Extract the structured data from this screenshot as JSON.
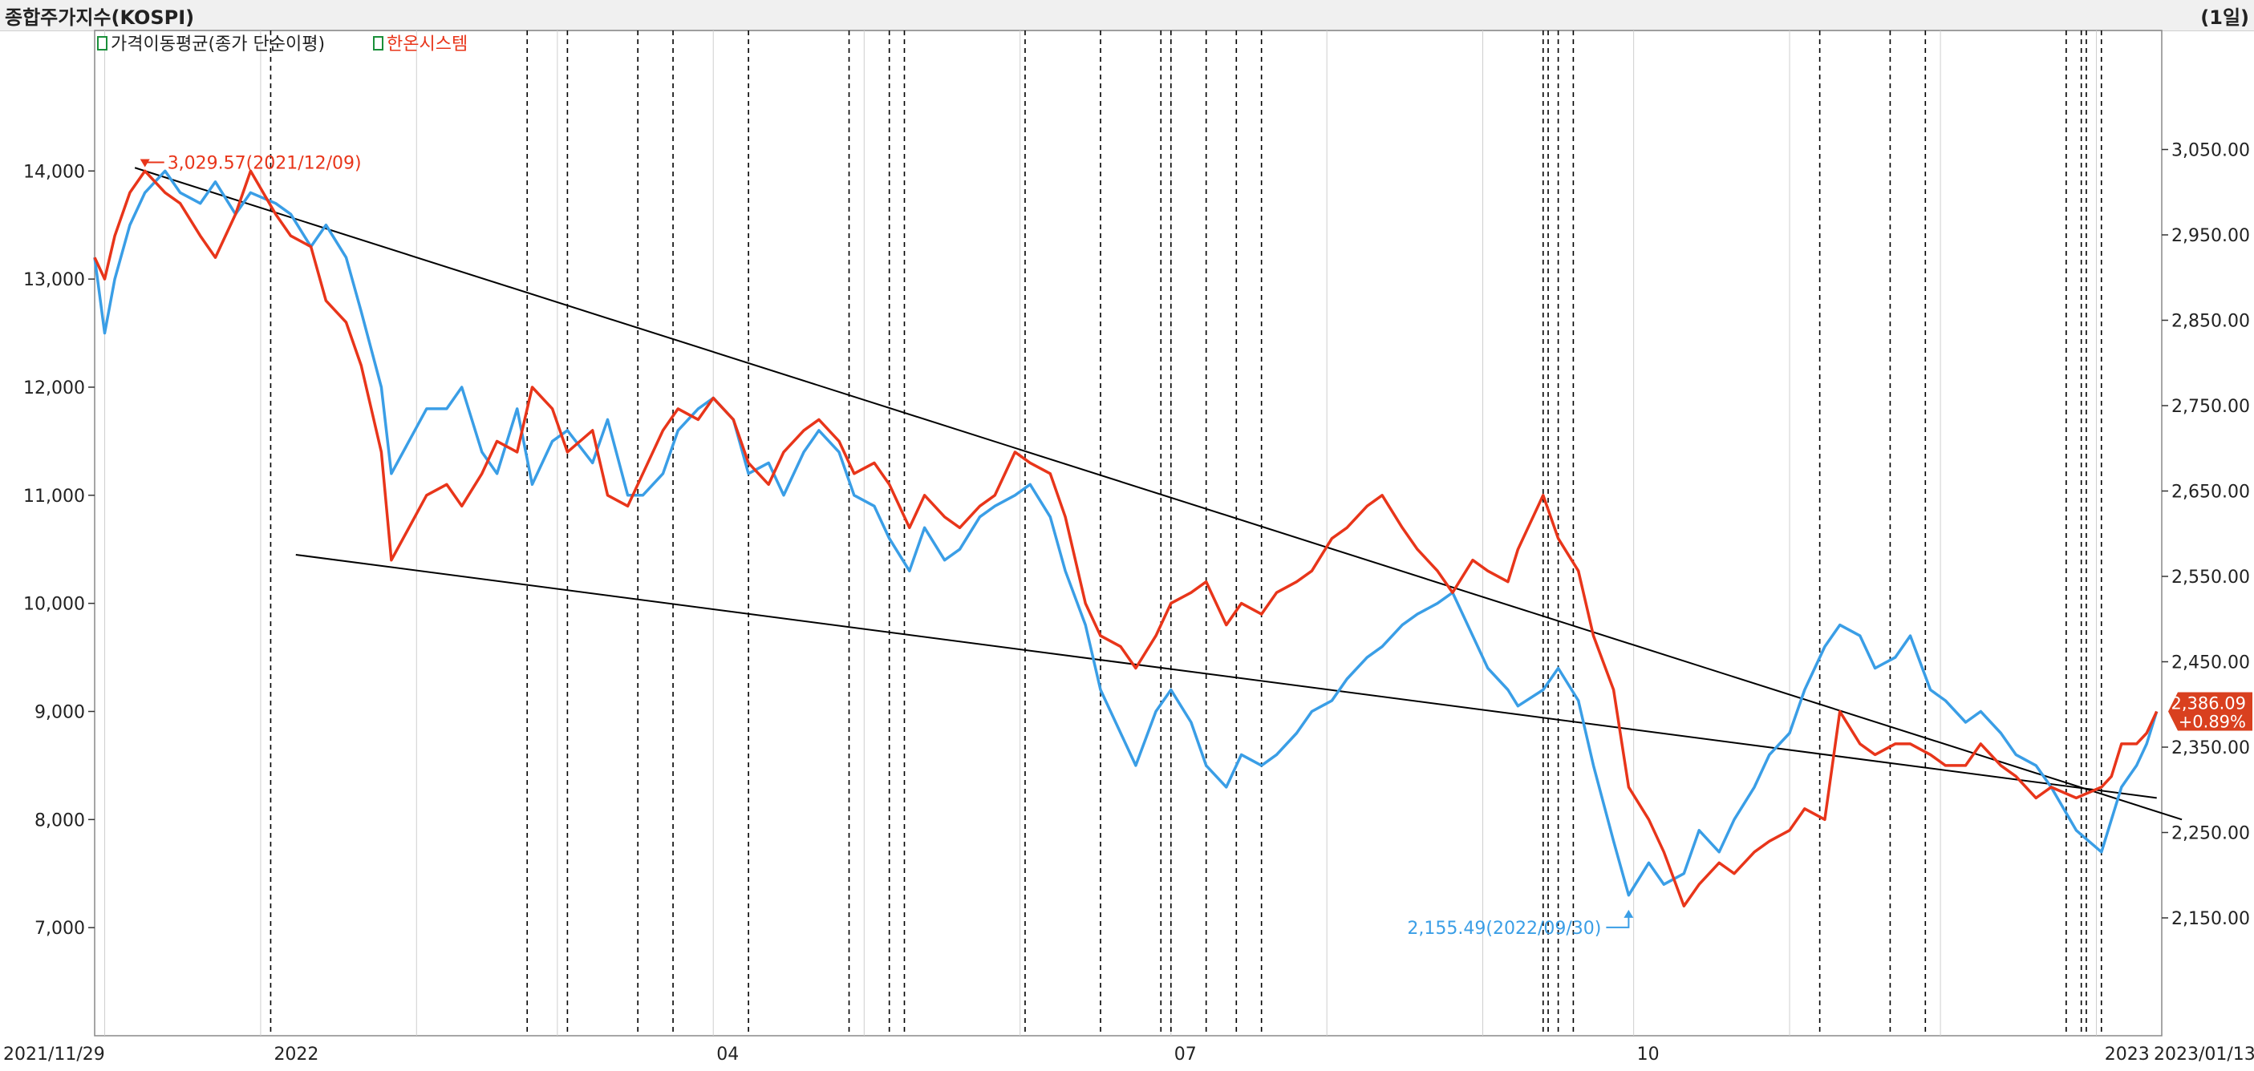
{
  "header": {
    "title": "종합주가지수(KOSPI)",
    "period": "(1일)"
  },
  "colors": {
    "price": "#e8351a",
    "moving_average": "#3a9ee6",
    "trendline": "#000000",
    "signal_line": "#000000",
    "grid": "#cfcfcf",
    "badge": "#d9401f"
  },
  "chart_data": {
    "type": "line",
    "legend": [
      "가격이동평균(종가 단순이평)",
      "한온시스템"
    ],
    "legend_placement": "top-left",
    "x_range": [
      "2021/11/29",
      "2023/01/13"
    ],
    "x_tick_labels": [
      "2021/11/29",
      "2022",
      "04",
      "07",
      "10",
      "2023",
      "2023/01/13"
    ],
    "left_axis": {
      "ticks": [
        7000,
        8000,
        9000,
        10000,
        11000,
        12000,
        13000,
        14000
      ],
      "tick_labels": [
        "7,000",
        "8,000",
        "9,000",
        "10,000",
        "11,000",
        "12,000",
        "13,000",
        "14,000"
      ],
      "ylim": [
        6000,
        15300
      ]
    },
    "right_axis": {
      "ticks": [
        2150,
        2250,
        2350,
        2450,
        2550,
        2650,
        2750,
        2850,
        2950,
        3050
      ],
      "tick_labels": [
        "2,150.00",
        "2,250.00",
        "2,350.00",
        "2,450.00",
        "2,550.00",
        "2,650.00",
        "2,750.00",
        "2,850.00",
        "2,950.00",
        "3,050.00"
      ]
    },
    "series": [
      {
        "name": "가격이동평균(종가 단순이평)",
        "axis": "left",
        "color_key": "moving_average",
        "points": [
          [
            "2021-11-29",
            13200
          ],
          [
            "2021-12-01",
            12500
          ],
          [
            "2021-12-03",
            13000
          ],
          [
            "2021-12-06",
            13500
          ],
          [
            "2021-12-09",
            13800
          ],
          [
            "2021-12-13",
            14000
          ],
          [
            "2021-12-16",
            13800
          ],
          [
            "2021-12-20",
            13700
          ],
          [
            "2021-12-23",
            13900
          ],
          [
            "2021-12-27",
            13600
          ],
          [
            "2021-12-30",
            13800
          ],
          [
            "2022-01-04",
            13700
          ],
          [
            "2022-01-07",
            13600
          ],
          [
            "2022-01-11",
            13300
          ],
          [
            "2022-01-14",
            13500
          ],
          [
            "2022-01-18",
            13200
          ],
          [
            "2022-01-21",
            12700
          ],
          [
            "2022-01-25",
            12000
          ],
          [
            "2022-01-27",
            11200
          ],
          [
            "2022-02-03",
            11800
          ],
          [
            "2022-02-07",
            11800
          ],
          [
            "2022-02-10",
            12000
          ],
          [
            "2022-02-14",
            11400
          ],
          [
            "2022-02-17",
            11200
          ],
          [
            "2022-02-21",
            11800
          ],
          [
            "2022-02-24",
            11100
          ],
          [
            "2022-02-28",
            11500
          ],
          [
            "2022-03-03",
            11600
          ],
          [
            "2022-03-08",
            11300
          ],
          [
            "2022-03-11",
            11700
          ],
          [
            "2022-03-15",
            11000
          ],
          [
            "2022-03-18",
            11000
          ],
          [
            "2022-03-22",
            11200
          ],
          [
            "2022-03-25",
            11600
          ],
          [
            "2022-03-29",
            11800
          ],
          [
            "2022-04-01",
            11900
          ],
          [
            "2022-04-05",
            11700
          ],
          [
            "2022-04-08",
            11200
          ],
          [
            "2022-04-12",
            11300
          ],
          [
            "2022-04-15",
            11000
          ],
          [
            "2022-04-19",
            11400
          ],
          [
            "2022-04-22",
            11600
          ],
          [
            "2022-04-26",
            11400
          ],
          [
            "2022-04-29",
            11000
          ],
          [
            "2022-05-03",
            10900
          ],
          [
            "2022-05-06",
            10600
          ],
          [
            "2022-05-10",
            10300
          ],
          [
            "2022-05-13",
            10700
          ],
          [
            "2022-05-17",
            10400
          ],
          [
            "2022-05-20",
            10500
          ],
          [
            "2022-05-24",
            10800
          ],
          [
            "2022-05-27",
            10900
          ],
          [
            "2022-05-31",
            11000
          ],
          [
            "2022-06-03",
            11100
          ],
          [
            "2022-06-07",
            10800
          ],
          [
            "2022-06-10",
            10300
          ],
          [
            "2022-06-14",
            9800
          ],
          [
            "2022-06-17",
            9200
          ],
          [
            "2022-06-21",
            8800
          ],
          [
            "2022-06-24",
            8500
          ],
          [
            "2022-06-28",
            9000
          ],
          [
            "2022-07-01",
            9200
          ],
          [
            "2022-07-05",
            8900
          ],
          [
            "2022-07-08",
            8500
          ],
          [
            "2022-07-12",
            8300
          ],
          [
            "2022-07-15",
            8600
          ],
          [
            "2022-07-19",
            8500
          ],
          [
            "2022-07-22",
            8600
          ],
          [
            "2022-07-26",
            8800
          ],
          [
            "2022-07-29",
            9000
          ],
          [
            "2022-08-02",
            9100
          ],
          [
            "2022-08-05",
            9300
          ],
          [
            "2022-08-09",
            9500
          ],
          [
            "2022-08-12",
            9600
          ],
          [
            "2022-08-16",
            9800
          ],
          [
            "2022-08-19",
            9900
          ],
          [
            "2022-08-23",
            10000
          ],
          [
            "2022-08-26",
            10100
          ],
          [
            "2022-08-30",
            9700
          ],
          [
            "2022-09-02",
            9400
          ],
          [
            "2022-09-06",
            9200
          ],
          [
            "2022-09-08",
            9050
          ],
          [
            "2022-09-13",
            9200
          ],
          [
            "2022-09-16",
            9400
          ],
          [
            "2022-09-20",
            9100
          ],
          [
            "2022-09-23",
            8500
          ],
          [
            "2022-09-27",
            7800
          ],
          [
            "2022-09-30",
            7300
          ],
          [
            "2022-10-04",
            7600
          ],
          [
            "2022-10-07",
            7400
          ],
          [
            "2022-10-11",
            7500
          ],
          [
            "2022-10-14",
            7900
          ],
          [
            "2022-10-18",
            7700
          ],
          [
            "2022-10-21",
            8000
          ],
          [
            "2022-10-25",
            8300
          ],
          [
            "2022-10-28",
            8600
          ],
          [
            "2022-11-01",
            8800
          ],
          [
            "2022-11-04",
            9200
          ],
          [
            "2022-11-08",
            9600
          ],
          [
            "2022-11-11",
            9800
          ],
          [
            "2022-11-15",
            9700
          ],
          [
            "2022-11-18",
            9400
          ],
          [
            "2022-11-22",
            9500
          ],
          [
            "2022-11-25",
            9700
          ],
          [
            "2022-11-29",
            9200
          ],
          [
            "2022-12-02",
            9100
          ],
          [
            "2022-12-06",
            8900
          ],
          [
            "2022-12-09",
            9000
          ],
          [
            "2022-12-13",
            8800
          ],
          [
            "2022-12-16",
            8600
          ],
          [
            "2022-12-20",
            8500
          ],
          [
            "2022-12-23",
            8300
          ],
          [
            "2022-12-28",
            7900
          ],
          [
            "2023-01-02",
            7700
          ],
          [
            "2023-01-04",
            8000
          ],
          [
            "2023-01-06",
            8300
          ],
          [
            "2023-01-09",
            8500
          ],
          [
            "2023-01-11",
            8700
          ],
          [
            "2023-01-13",
            9000
          ]
        ]
      },
      {
        "name": "한온시스템",
        "axis": "left",
        "color_key": "price",
        "points": [
          [
            "2021-11-29",
            13200
          ],
          [
            "2021-12-01",
            13000
          ],
          [
            "2021-12-03",
            13400
          ],
          [
            "2021-12-06",
            13800
          ],
          [
            "2021-12-09",
            14000
          ],
          [
            "2021-12-13",
            13800
          ],
          [
            "2021-12-16",
            13700
          ],
          [
            "2021-12-20",
            13400
          ],
          [
            "2021-12-23",
            13200
          ],
          [
            "2021-12-27",
            13600
          ],
          [
            "2021-12-30",
            14000
          ],
          [
            "2022-01-04",
            13600
          ],
          [
            "2022-01-07",
            13400
          ],
          [
            "2022-01-11",
            13300
          ],
          [
            "2022-01-14",
            12800
          ],
          [
            "2022-01-18",
            12600
          ],
          [
            "2022-01-21",
            12200
          ],
          [
            "2022-01-25",
            11400
          ],
          [
            "2022-01-27",
            10400
          ],
          [
            "2022-02-03",
            11000
          ],
          [
            "2022-02-07",
            11100
          ],
          [
            "2022-02-10",
            10900
          ],
          [
            "2022-02-14",
            11200
          ],
          [
            "2022-02-17",
            11500
          ],
          [
            "2022-02-21",
            11400
          ],
          [
            "2022-02-24",
            12000
          ],
          [
            "2022-02-28",
            11800
          ],
          [
            "2022-03-03",
            11400
          ],
          [
            "2022-03-08",
            11600
          ],
          [
            "2022-03-11",
            11000
          ],
          [
            "2022-03-15",
            10900
          ],
          [
            "2022-03-18",
            11200
          ],
          [
            "2022-03-22",
            11600
          ],
          [
            "2022-03-25",
            11800
          ],
          [
            "2022-03-29",
            11700
          ],
          [
            "2022-04-01",
            11900
          ],
          [
            "2022-04-05",
            11700
          ],
          [
            "2022-04-08",
            11300
          ],
          [
            "2022-04-12",
            11100
          ],
          [
            "2022-04-15",
            11400
          ],
          [
            "2022-04-19",
            11600
          ],
          [
            "2022-04-22",
            11700
          ],
          [
            "2022-04-26",
            11500
          ],
          [
            "2022-04-29",
            11200
          ],
          [
            "2022-05-03",
            11300
          ],
          [
            "2022-05-06",
            11100
          ],
          [
            "2022-05-10",
            10700
          ],
          [
            "2022-05-13",
            11000
          ],
          [
            "2022-05-17",
            10800
          ],
          [
            "2022-05-20",
            10700
          ],
          [
            "2022-05-24",
            10900
          ],
          [
            "2022-05-27",
            11000
          ],
          [
            "2022-05-31",
            11400
          ],
          [
            "2022-06-03",
            11300
          ],
          [
            "2022-06-07",
            11200
          ],
          [
            "2022-06-10",
            10800
          ],
          [
            "2022-06-14",
            10000
          ],
          [
            "2022-06-17",
            9700
          ],
          [
            "2022-06-21",
            9600
          ],
          [
            "2022-06-24",
            9400
          ],
          [
            "2022-06-28",
            9700
          ],
          [
            "2022-07-01",
            10000
          ],
          [
            "2022-07-05",
            10100
          ],
          [
            "2022-07-08",
            10200
          ],
          [
            "2022-07-12",
            9800
          ],
          [
            "2022-07-15",
            10000
          ],
          [
            "2022-07-19",
            9900
          ],
          [
            "2022-07-22",
            10100
          ],
          [
            "2022-07-26",
            10200
          ],
          [
            "2022-07-29",
            10300
          ],
          [
            "2022-08-02",
            10600
          ],
          [
            "2022-08-05",
            10700
          ],
          [
            "2022-08-09",
            10900
          ],
          [
            "2022-08-12",
            11000
          ],
          [
            "2022-08-16",
            10700
          ],
          [
            "2022-08-19",
            10500
          ],
          [
            "2022-08-23",
            10300
          ],
          [
            "2022-08-26",
            10100
          ],
          [
            "2022-08-30",
            10400
          ],
          [
            "2022-09-02",
            10300
          ],
          [
            "2022-09-06",
            10200
          ],
          [
            "2022-09-08",
            10500
          ],
          [
            "2022-09-13",
            11000
          ],
          [
            "2022-09-16",
            10600
          ],
          [
            "2022-09-20",
            10300
          ],
          [
            "2022-09-23",
            9700
          ],
          [
            "2022-09-27",
            9200
          ],
          [
            "2022-09-30",
            8300
          ],
          [
            "2022-10-04",
            8000
          ],
          [
            "2022-10-07",
            7700
          ],
          [
            "2022-10-11",
            7200
          ],
          [
            "2022-10-14",
            7400
          ],
          [
            "2022-10-18",
            7600
          ],
          [
            "2022-10-21",
            7500
          ],
          [
            "2022-10-25",
            7700
          ],
          [
            "2022-10-28",
            7800
          ],
          [
            "2022-11-01",
            7900
          ],
          [
            "2022-11-04",
            8100
          ],
          [
            "2022-11-08",
            8000
          ],
          [
            "2022-11-11",
            9000
          ],
          [
            "2022-11-15",
            8700
          ],
          [
            "2022-11-18",
            8600
          ],
          [
            "2022-11-22",
            8700
          ],
          [
            "2022-11-25",
            8700
          ],
          [
            "2022-11-29",
            8600
          ],
          [
            "2022-12-02",
            8500
          ],
          [
            "2022-12-06",
            8500
          ],
          [
            "2022-12-09",
            8700
          ],
          [
            "2022-12-13",
            8500
          ],
          [
            "2022-12-16",
            8400
          ],
          [
            "2022-12-20",
            8200
          ],
          [
            "2022-12-23",
            8300
          ],
          [
            "2022-12-28",
            8200
          ],
          [
            "2023-01-02",
            8300
          ],
          [
            "2023-01-04",
            8400
          ],
          [
            "2023-01-06",
            8700
          ],
          [
            "2023-01-09",
            8700
          ],
          [
            "2023-01-11",
            8800
          ],
          [
            "2023-01-13",
            9000
          ]
        ]
      }
    ],
    "trendlines": [
      {
        "from": [
          "2021-12-07",
          14030
        ],
        "to": [
          "2023-01-18",
          8000
        ]
      },
      {
        "from": [
          "2022-01-08",
          10450
        ],
        "to": [
          "2023-01-13",
          8200
        ]
      }
    ],
    "signal_dates": [
      "2022-01-03",
      "2022-02-23",
      "2022-03-03",
      "2022-03-17",
      "2022-03-24",
      "2022-04-08",
      "2022-04-28",
      "2022-05-06",
      "2022-05-09",
      "2022-06-02",
      "2022-06-17",
      "2022-06-29",
      "2022-07-01",
      "2022-07-08",
      "2022-07-14",
      "2022-07-19",
      "2022-09-13",
      "2022-09-14",
      "2022-09-16",
      "2022-09-19",
      "2022-11-07",
      "2022-11-21",
      "2022-11-28",
      "2022-12-26",
      "2022-12-29",
      "2022-12-30",
      "2023-01-02"
    ],
    "annotations": [
      {
        "text": "3,029.57(2021/12/09)",
        "date": "2021-12-09",
        "value": 14050,
        "color_key": "price"
      },
      {
        "text": "2,155.49(2022/09/30)",
        "date": "2022-09-30",
        "value": 7150,
        "color_key": "moving_average"
      }
    ],
    "last_value_badge": {
      "value": "2,386.09",
      "change": "+0.89%",
      "axis_value": 9000
    },
    "grid": {
      "vertical": true,
      "horizontal": false
    }
  }
}
